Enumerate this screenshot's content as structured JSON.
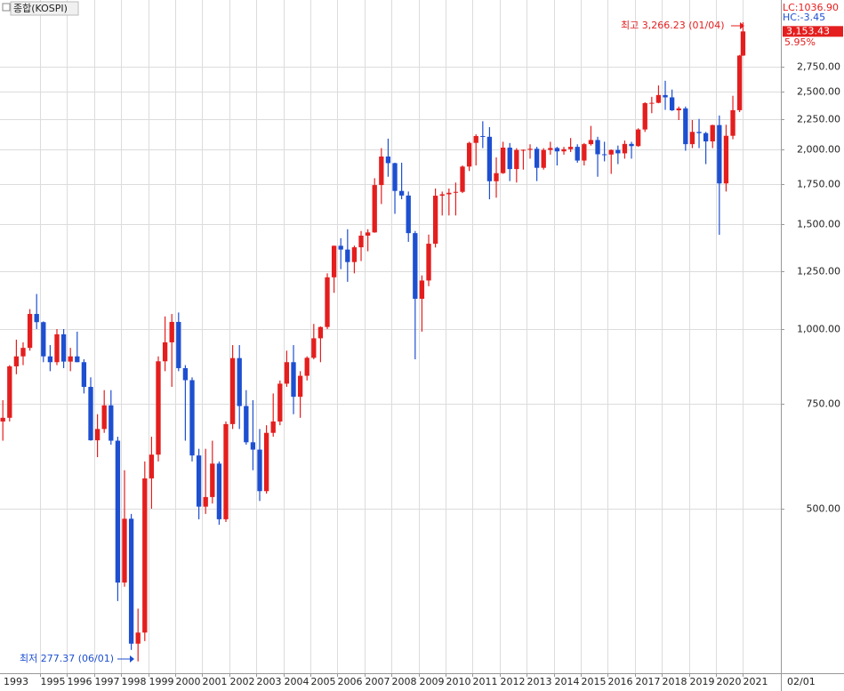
{
  "chart_data": {
    "type": "candlestick",
    "title": "종합(KOSPI)",
    "log_scale": true,
    "grid": true,
    "up_color": "#e41e1e",
    "down_color": "#1d4fd0",
    "ylim": [
      265,
      3560
    ],
    "yticks": [
      {
        "value": 500,
        "label": "500.00"
      },
      {
        "value": 750,
        "label": "750.00"
      },
      {
        "value": 1000,
        "label": "1,000.00"
      },
      {
        "value": 1250,
        "label": "1,250.00"
      },
      {
        "value": 1500,
        "label": "1,500.00"
      },
      {
        "value": 1750,
        "label": "1,750.00"
      },
      {
        "value": 2000,
        "label": "2,000.00"
      },
      {
        "value": 2250,
        "label": "2,250.00"
      },
      {
        "value": 2500,
        "label": "2,500.00"
      },
      {
        "value": 2750,
        "label": "2,750.00"
      }
    ],
    "xlim": [
      1993.52,
      2022.4
    ],
    "start_label": "1993",
    "xticks": [
      1995,
      1996,
      1997,
      1998,
      1999,
      2000,
      2001,
      2002,
      2003,
      2004,
      2005,
      2006,
      2007,
      2008,
      2009,
      2010,
      2011,
      2012,
      2013,
      2014,
      2015,
      2016,
      2017,
      2018,
      2019,
      2020,
      2021
    ],
    "date_label": "02/01",
    "last_price": {
      "value": 3153.43,
      "label": "3,153.43"
    },
    "info": {
      "lc": "LC:1036.90",
      "hc": "HC:-3.45",
      "change": "5.95%"
    },
    "high_annotation": "최고 3,266.23 (01/04)",
    "low_annotation": "최저 277.37 (06/01)",
    "x": [
      1993.625,
      1993.875,
      1994.125,
      1994.375,
      1994.625,
      1994.875,
      1995.125,
      1995.375,
      1995.625,
      1995.875,
      1996.125,
      1996.375,
      1996.625,
      1996.875,
      1997.125,
      1997.375,
      1997.625,
      1997.875,
      1998.125,
      1998.375,
      1998.625,
      1998.875,
      1999.125,
      1999.375,
      1999.625,
      1999.875,
      2000.125,
      2000.375,
      2000.625,
      2000.875,
      2001.125,
      2001.375,
      2001.625,
      2001.875,
      2002.125,
      2002.375,
      2002.625,
      2002.875,
      2003.125,
      2003.375,
      2003.625,
      2003.875,
      2004.125,
      2004.375,
      2004.625,
      2004.875,
      2005.125,
      2005.375,
      2005.625,
      2005.875,
      2006.125,
      2006.375,
      2006.625,
      2006.875,
      2007.125,
      2007.375,
      2007.625,
      2007.875,
      2008.125,
      2008.375,
      2008.625,
      2008.875,
      2009.125,
      2009.375,
      2009.625,
      2009.875,
      2010.125,
      2010.375,
      2010.625,
      2010.875,
      2011.125,
      2011.375,
      2011.625,
      2011.875,
      2012.125,
      2012.375,
      2012.625,
      2012.875,
      2013.125,
      2013.375,
      2013.625,
      2013.875,
      2014.125,
      2014.375,
      2014.625,
      2014.875,
      2015.125,
      2015.375,
      2015.625,
      2015.875,
      2016.125,
      2016.375,
      2016.625,
      2016.875,
      2017.125,
      2017.375,
      2017.625,
      2017.875,
      2018.125,
      2018.375,
      2018.625,
      2018.875,
      2019.125,
      2019.375,
      2019.625,
      2019.875,
      2020.125,
      2020.375,
      2020.625,
      2020.875,
      2021.0
    ],
    "ohlc": [
      [
        700,
        760,
        650,
        710
      ],
      [
        710,
        870,
        700,
        866
      ],
      [
        866,
        960,
        840,
        900
      ],
      [
        900,
        950,
        870,
        930
      ],
      [
        930,
        1080,
        920,
        1060
      ],
      [
        1060,
        1145,
        1000,
        1027
      ],
      [
        1027,
        1030,
        880,
        900
      ],
      [
        900,
        940,
        850,
        880
      ],
      [
        880,
        1000,
        870,
        980
      ],
      [
        980,
        1000,
        860,
        882
      ],
      [
        882,
        930,
        850,
        900
      ],
      [
        900,
        990,
        880,
        880
      ],
      [
        880,
        890,
        780,
        800
      ],
      [
        800,
        830,
        650,
        651
      ],
      [
        651,
        720,
        610,
        680
      ],
      [
        680,
        790,
        670,
        745
      ],
      [
        745,
        790,
        640,
        650
      ],
      [
        650,
        660,
        350,
        376
      ],
      [
        376,
        580,
        370,
        481
      ],
      [
        481,
        490,
        290,
        297
      ],
      [
        297,
        340,
        277.37,
        310
      ],
      [
        310,
        600,
        300,
        562
      ],
      [
        562,
        660,
        500,
        616
      ],
      [
        616,
        900,
        600,
        883
      ],
      [
        883,
        1050,
        850,
        950
      ],
      [
        950,
        1060,
        800,
        1028
      ],
      [
        1028,
        1066,
        850,
        860
      ],
      [
        860,
        870,
        650,
        821
      ],
      [
        821,
        830,
        600,
        614
      ],
      [
        614,
        630,
        480,
        504
      ],
      [
        504,
        630,
        490,
        523
      ],
      [
        523,
        650,
        510,
        595
      ],
      [
        595,
        600,
        470,
        480
      ],
      [
        480,
        700,
        475,
        693
      ],
      [
        693,
        940,
        680,
        894
      ],
      [
        894,
        940,
        680,
        743
      ],
      [
        743,
        790,
        640,
        646
      ],
      [
        646,
        760,
        580,
        628
      ],
      [
        628,
        680,
        515,
        535
      ],
      [
        535,
        690,
        530,
        670
      ],
      [
        670,
        780,
        660,
        700
      ],
      [
        700,
        820,
        690,
        810
      ],
      [
        810,
        920,
        800,
        880
      ],
      [
        880,
        940,
        720,
        770
      ],
      [
        770,
        850,
        710,
        835
      ],
      [
        835,
        900,
        820,
        895
      ],
      [
        895,
        1020,
        890,
        965
      ],
      [
        965,
        1010,
        880,
        1008
      ],
      [
        1008,
        1240,
        1000,
        1221
      ],
      [
        1221,
        1380,
        1150,
        1379
      ],
      [
        1379,
        1420,
        1260,
        1359
      ],
      [
        1359,
        1470,
        1200,
        1295
      ],
      [
        1295,
        1380,
        1240,
        1371
      ],
      [
        1371,
        1460,
        1300,
        1434
      ],
      [
        1434,
        1470,
        1350,
        1452
      ],
      [
        1452,
        1790,
        1450,
        1743
      ],
      [
        1743,
        2010,
        1620,
        1946
      ],
      [
        1946,
        2085,
        1800,
        1897
      ],
      [
        1897,
        1900,
        1560,
        1704
      ],
      [
        1704,
        1900,
        1650,
        1674
      ],
      [
        1674,
        1700,
        1400,
        1448
      ],
      [
        1448,
        1460,
        890,
        1124
      ],
      [
        1124,
        1230,
        990,
        1206
      ],
      [
        1206,
        1440,
        1180,
        1390
      ],
      [
        1390,
        1720,
        1370,
        1673
      ],
      [
        1673,
        1700,
        1550,
        1682
      ],
      [
        1682,
        1720,
        1550,
        1692
      ],
      [
        1692,
        1760,
        1550,
        1698
      ],
      [
        1698,
        1880,
        1690,
        1872
      ],
      [
        1872,
        2060,
        1840,
        2051
      ],
      [
        2051,
        2120,
        1880,
        2106
      ],
      [
        2106,
        2230,
        2010,
        2100
      ],
      [
        2100,
        2180,
        1650,
        1769
      ],
      [
        1769,
        1940,
        1660,
        1825
      ],
      [
        1825,
        2060,
        1820,
        2014
      ],
      [
        2014,
        2050,
        1770,
        1854
      ],
      [
        1854,
        2010,
        1760,
        1996
      ],
      [
        1996,
        2000,
        1850,
        1997
      ],
      [
        1997,
        2040,
        1930,
        2005
      ],
      [
        2005,
        2020,
        1770,
        1863
      ],
      [
        1863,
        2010,
        1850,
        1996
      ],
      [
        1996,
        2060,
        1960,
        2011
      ],
      [
        2011,
        2020,
        1880,
        1985
      ],
      [
        1985,
        2020,
        1960,
        2002
      ],
      [
        2002,
        2090,
        1980,
        2020
      ],
      [
        2020,
        2040,
        1900,
        1916
      ],
      [
        1916,
        2050,
        1880,
        2041
      ],
      [
        2041,
        2190,
        2030,
        2074
      ],
      [
        2074,
        2100,
        1800,
        1963
      ],
      [
        1963,
        2060,
        1910,
        1961
      ],
      [
        1961,
        2000,
        1820,
        1996
      ],
      [
        1996,
        2030,
        1890,
        1970
      ],
      [
        1970,
        2070,
        1930,
        2043
      ],
      [
        2043,
        2060,
        1930,
        2026
      ],
      [
        2026,
        2170,
        2020,
        2160
      ],
      [
        2160,
        2400,
        2140,
        2391
      ],
      [
        2391,
        2450,
        2300,
        2394
      ],
      [
        2394,
        2560,
        2390,
        2467
      ],
      [
        2467,
        2607,
        2330,
        2445
      ],
      [
        2445,
        2520,
        2320,
        2326
      ],
      [
        2326,
        2360,
        2240,
        2343
      ],
      [
        2343,
        2360,
        1990,
        2041
      ],
      [
        2041,
        2240,
        2010,
        2140
      ],
      [
        2140,
        2250,
        2010,
        2130
      ],
      [
        2130,
        2140,
        1890,
        2063
      ],
      [
        2063,
        2200,
        2010,
        2197
      ],
      [
        2197,
        2280,
        1439,
        1754
      ],
      [
        1754,
        2200,
        1700,
        2108
      ],
      [
        2108,
        2460,
        2080,
        2327
      ],
      [
        2327,
        2880,
        2310,
        2873
      ],
      [
        2873,
        3266.23,
        2870,
        3153.43
      ]
    ]
  }
}
